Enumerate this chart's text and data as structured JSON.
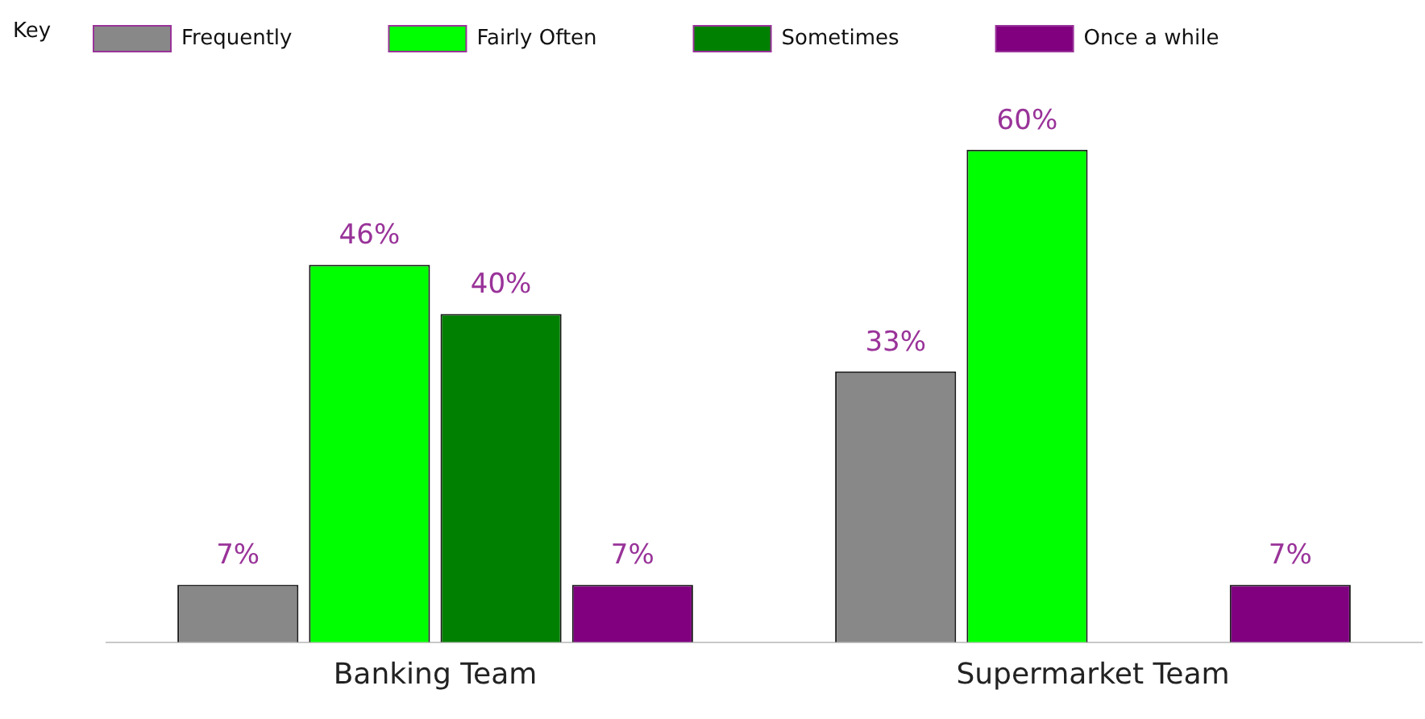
{
  "chart_data": {
    "type": "bar",
    "categories": [
      "Banking Team",
      "Supermarket Team"
    ],
    "series": [
      {
        "name": "Frequently",
        "color": "#888888",
        "values": [
          7,
          33
        ],
        "value_labels": [
          "7%",
          "33%"
        ]
      },
      {
        "name": "Fairly Often",
        "color": "#00ff00",
        "values": [
          46,
          60
        ],
        "value_labels": [
          "46%",
          "60%"
        ]
      },
      {
        "name": "Sometimes",
        "color": "#008000",
        "values": [
          40,
          null
        ],
        "value_labels": [
          "40%",
          null
        ]
      },
      {
        "name": "Once a while",
        "color": "#800080",
        "values": [
          7,
          7
        ],
        "value_labels": [
          "7%",
          "7%"
        ]
      }
    ],
    "legend": "top",
    "legend_title": "Key",
    "tick_labels": "x"
  }
}
